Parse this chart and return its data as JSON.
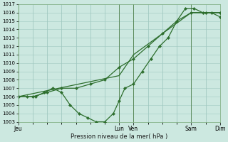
{
  "xlabel": "Pression niveau de la mer( hPa )",
  "ylim": [
    1003,
    1017
  ],
  "yticks": [
    1003,
    1004,
    1005,
    1006,
    1007,
    1008,
    1009,
    1010,
    1011,
    1012,
    1013,
    1014,
    1015,
    1016,
    1017
  ],
  "bg_color": "#cce8e0",
  "grid_color": "#a0c8c0",
  "line_color": "#2d6e2d",
  "xlim": [
    0,
    7.0
  ],
  "day_labels": [
    "Jeu",
    "Lun",
    "Ven",
    "Sam",
    "Dim"
  ],
  "day_positions": [
    0.0,
    3.5,
    4.0,
    6.0,
    7.0
  ],
  "vline_positions": [
    0.0,
    3.5,
    4.0,
    6.0,
    7.0
  ],
  "line1_x": [
    0.0,
    3.5,
    4.0,
    6.0,
    7.0
  ],
  "line1_y": [
    1006.0,
    1008.5,
    1011.0,
    1016.0,
    1016.0
  ],
  "line2_x": [
    0.0,
    0.3,
    0.6,
    0.9,
    1.2,
    1.5,
    1.8,
    2.1,
    2.4,
    2.7,
    3.0,
    3.3,
    3.5,
    3.7,
    4.0,
    4.3,
    4.6,
    4.9,
    5.2,
    5.5,
    5.8,
    6.1,
    6.4,
    6.7,
    7.0
  ],
  "line2_y": [
    1006,
    1006,
    1006,
    1006.5,
    1007,
    1006.5,
    1005,
    1004,
    1003.5,
    1003,
    1003,
    1004,
    1005.5,
    1007,
    1007.5,
    1009,
    1010.5,
    1012,
    1013,
    1015,
    1016.5,
    1016.5,
    1016,
    1016,
    1015.5
  ],
  "line3_x": [
    0.0,
    0.5,
    1.0,
    1.5,
    2.0,
    2.5,
    3.0,
    3.5,
    4.0,
    4.5,
    5.0,
    5.5,
    6.0,
    6.5,
    7.0
  ],
  "line3_y": [
    1006,
    1006,
    1006.5,
    1007,
    1007,
    1007.5,
    1008,
    1009.5,
    1010.5,
    1012,
    1013.5,
    1015,
    1016,
    1016,
    1016
  ]
}
